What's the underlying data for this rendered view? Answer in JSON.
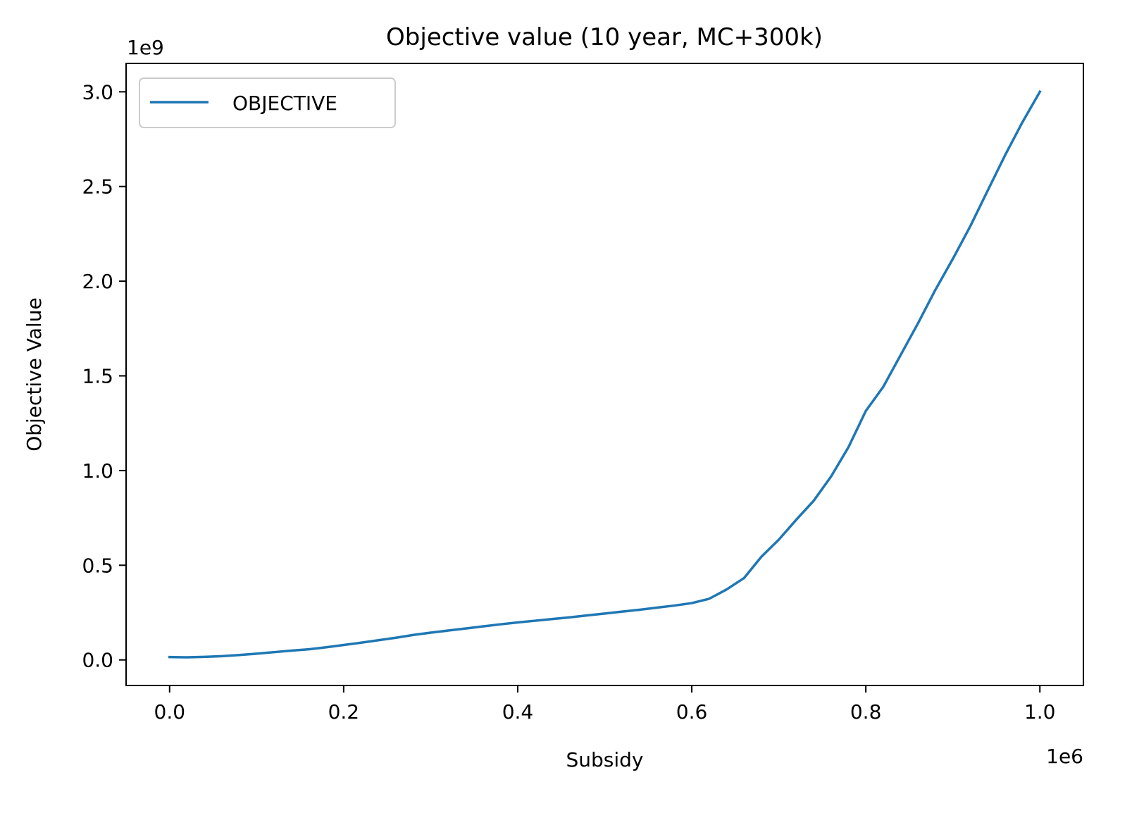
{
  "chart_data": {
    "type": "line",
    "title": "Objective value (10 year, MC+300k)",
    "xlabel": "Subsidy",
    "ylabel": "Objective Value",
    "x_offset_label": "1e6",
    "y_offset_label": "1e9",
    "x_scale": 1000000,
    "y_scale": 1000000000,
    "xlim": [
      -0.05,
      1.05
    ],
    "ylim": [
      -0.135,
      3.15
    ],
    "x_ticks": [
      0.0,
      0.2,
      0.4,
      0.6,
      0.8,
      1.0
    ],
    "x_tick_labels": [
      "0.0",
      "0.2",
      "0.4",
      "0.6",
      "0.8",
      "1.0"
    ],
    "y_ticks": [
      0.0,
      0.5,
      1.0,
      1.5,
      2.0,
      2.5,
      3.0
    ],
    "y_tick_labels": [
      "0.0",
      "0.5",
      "1.0",
      "1.5",
      "2.0",
      "2.5",
      "3.0"
    ],
    "grid": false,
    "legend_position": "upper-left",
    "series": [
      {
        "name": "OBJECTIVE",
        "color": "#1f77b4",
        "x": [
          0.0,
          0.02,
          0.04,
          0.06,
          0.08,
          0.1,
          0.12,
          0.14,
          0.16,
          0.18,
          0.2,
          0.22,
          0.24,
          0.26,
          0.28,
          0.3,
          0.32,
          0.34,
          0.36,
          0.38,
          0.4,
          0.42,
          0.44,
          0.46,
          0.48,
          0.5,
          0.52,
          0.54,
          0.56,
          0.58,
          0.6,
          0.62,
          0.64,
          0.66,
          0.68,
          0.7,
          0.72,
          0.74,
          0.76,
          0.78,
          0.8,
          0.82,
          0.84,
          0.86,
          0.88,
          0.9,
          0.92,
          0.94,
          0.96,
          0.98,
          1.0
        ],
        "y": [
          0.015,
          0.014,
          0.016,
          0.02,
          0.026,
          0.033,
          0.041,
          0.049,
          0.056,
          0.067,
          0.079,
          0.091,
          0.104,
          0.117,
          0.132,
          0.144,
          0.155,
          0.166,
          0.177,
          0.188,
          0.198,
          0.207,
          0.216,
          0.225,
          0.235,
          0.245,
          0.255,
          0.265,
          0.276,
          0.287,
          0.3,
          0.323,
          0.372,
          0.432,
          0.545,
          0.635,
          0.74,
          0.84,
          0.968,
          1.123,
          1.315,
          1.442,
          1.61,
          1.778,
          1.955,
          2.118,
          2.29,
          2.478,
          2.665,
          2.84,
          3.0
        ]
      }
    ]
  }
}
